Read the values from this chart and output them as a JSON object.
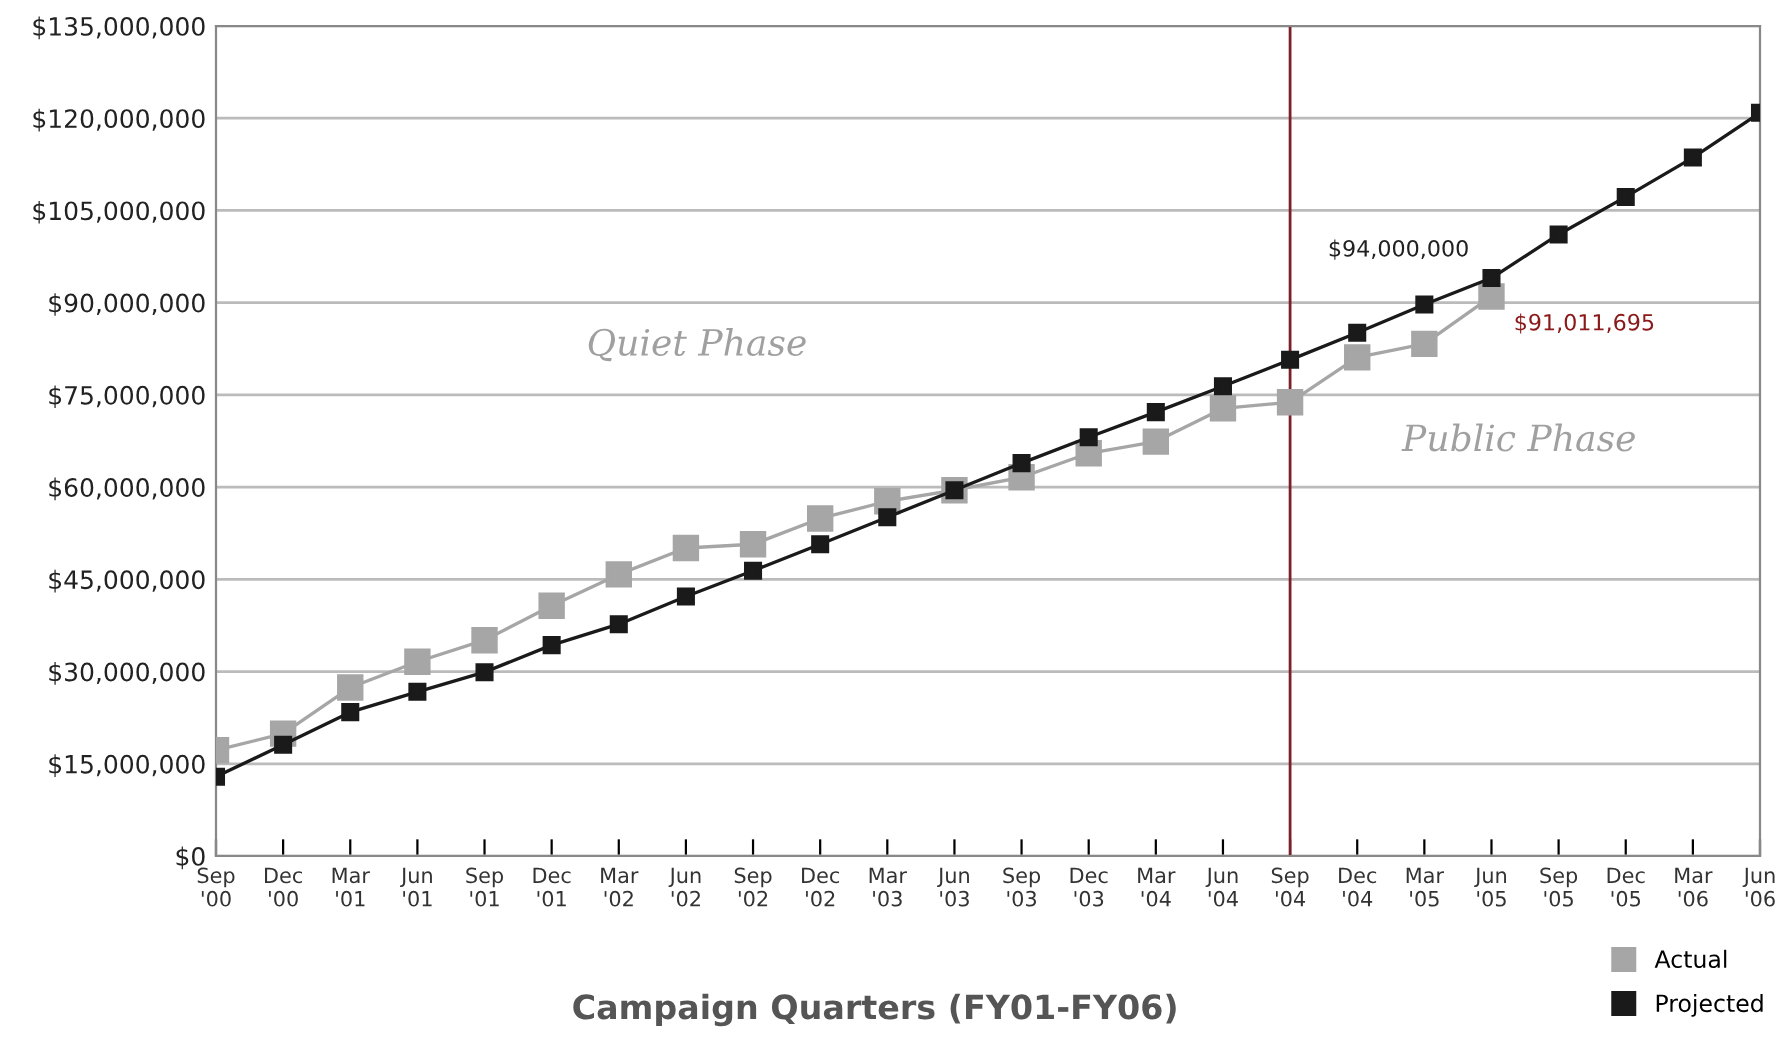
{
  "chart_data": {
    "type": "line",
    "xlabel": "Campaign Quarters (FY01-FY06)",
    "categories": [
      "Sep\n'00",
      "Dec\n'00",
      "Mar\n'01",
      "Jun\n'01",
      "Sep\n'01",
      "Dec\n'01",
      "Mar\n'02",
      "Jun\n'02",
      "Sep\n'02",
      "Dec\n'02",
      "Mar\n'03",
      "Jun\n'03",
      "Sep\n'03",
      "Dec\n'03",
      "Mar\n'04",
      "Jun\n'04",
      "Sep\n'04",
      "Dec\n'04",
      "Mar\n'05",
      "Jun\n'05",
      "Sep\n'05",
      "Dec\n'05",
      "Mar\n'06",
      "Jun\n'06"
    ],
    "series": [
      {
        "name": "Actual",
        "color": "#a6a6a6",
        "values": [
          17200000,
          19900000,
          27400000,
          31600000,
          35100000,
          40700000,
          45800000,
          50100000,
          50700000,
          54900000,
          57700000,
          59500000,
          61600000,
          65500000,
          67400000,
          72800000,
          73800000,
          81100000,
          83300000,
          91011695,
          null,
          null,
          null,
          null
        ],
        "value_labels": [
          null,
          null,
          null,
          null,
          null,
          null,
          null,
          null,
          null,
          null,
          null,
          null,
          null,
          null,
          null,
          null,
          null,
          null,
          null,
          "$91,011,695",
          null,
          null,
          null,
          null
        ]
      },
      {
        "name": "Projected",
        "color": "#1a1a1a",
        "values": [
          12900000,
          18100000,
          23400000,
          26700000,
          29900000,
          34300000,
          37700000,
          42200000,
          46400000,
          50700000,
          55100000,
          59500000,
          63900000,
          68100000,
          72200000,
          76400000,
          80700000,
          85100000,
          89700000,
          94000000,
          101100000,
          107200000,
          113600000,
          120900000
        ],
        "value_labels": [
          null,
          null,
          null,
          null,
          null,
          null,
          null,
          null,
          null,
          null,
          null,
          null,
          null,
          null,
          null,
          null,
          null,
          null,
          null,
          "$94,000,000",
          null,
          null,
          null,
          null
        ]
      }
    ],
    "ylim": [
      0,
      135000000
    ],
    "yticks": [
      {
        "value": 0,
        "label": "$0"
      },
      {
        "value": 15000000,
        "label": "$15,000,000"
      },
      {
        "value": 30000000,
        "label": "$30,000,000"
      },
      {
        "value": 45000000,
        "label": "$45,000,000"
      },
      {
        "value": 60000000,
        "label": "$60,000,000"
      },
      {
        "value": 75000000,
        "label": "$75,000,000"
      },
      {
        "value": 90000000,
        "label": "$90,000,000"
      },
      {
        "value": 105000000,
        "label": "$105,000,000"
      },
      {
        "value": 120000000,
        "label": "$120,000,000"
      },
      {
        "value": 135000000,
        "label": "$135,000,000"
      }
    ],
    "ref_lines": [
      {
        "axis": "x",
        "value": "Sep\n'04",
        "label": null,
        "color": "#7b1f2a"
      }
    ],
    "annotations": [
      "Quiet Phase",
      "Public Phase"
    ],
    "grid": "y",
    "legend": "bottom right",
    "marker": "square",
    "line_style": "solid"
  }
}
